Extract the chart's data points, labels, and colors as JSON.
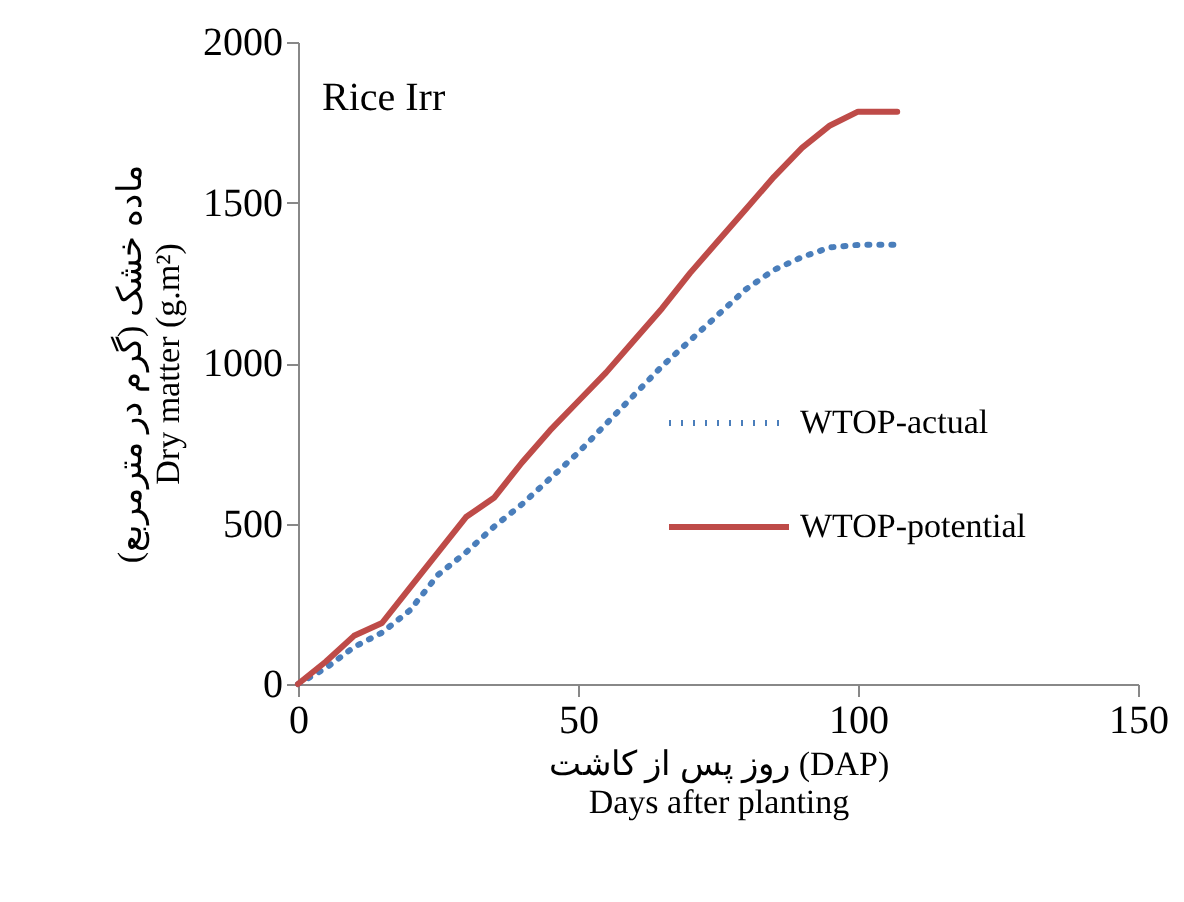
{
  "chart_data": {
    "type": "line",
    "title": "Rice Irr",
    "xlabel": [
      "روز پس از کاشت (DAP)",
      "Days after planting"
    ],
    "ylabel": [
      "ماده خشک (گرم در مترمربع)",
      "Dry matter (g.m²)"
    ],
    "x": [
      0,
      5,
      10,
      15,
      20,
      25,
      30,
      35,
      40,
      45,
      50,
      55,
      60,
      65,
      70,
      75,
      80,
      85,
      90,
      95,
      100,
      107
    ],
    "series": [
      {
        "name": "WTOP-actual",
        "color": "#4a7ebb",
        "line_style": "dotted",
        "values": [
          0,
          50,
          115,
          160,
          230,
          340,
          410,
          490,
          560,
          640,
          720,
          810,
          900,
          990,
          1070,
          1150,
          1230,
          1290,
          1330,
          1360,
          1368,
          1368
        ]
      },
      {
        "name": "WTOP-potential",
        "color": "#be4b48",
        "line_style": "solid",
        "values": [
          0,
          70,
          150,
          190,
          300,
          410,
          520,
          580,
          690,
          790,
          880,
          970,
          1070,
          1170,
          1280,
          1380,
          1480,
          1580,
          1670,
          1740,
          1783,
          1783
        ]
      }
    ],
    "xlim": [
      0,
      150
    ],
    "xticks": [
      0,
      50,
      100,
      150
    ],
    "ylim": [
      0,
      2000
    ],
    "yticks": [
      0,
      500,
      1000,
      1500,
      2000
    ],
    "grid": false,
    "legend": "right",
    "marker": "none"
  }
}
